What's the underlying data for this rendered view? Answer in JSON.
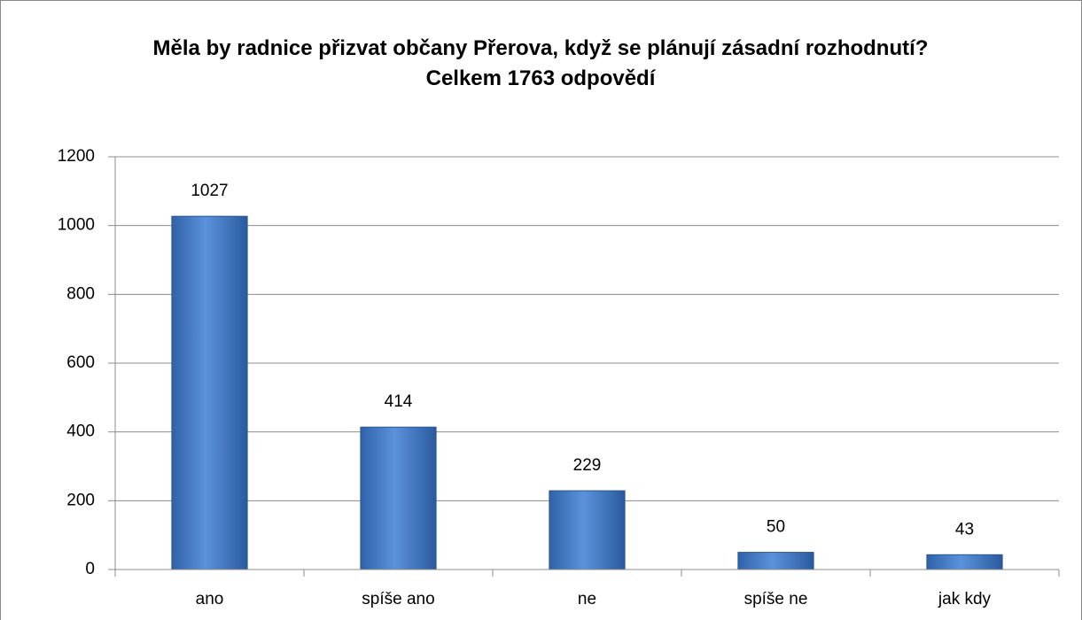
{
  "chart_data": {
    "type": "bar",
    "title": "Měla by radnice přizvat občany Přerova, když se plánují zásadní rozhodnutí? Celkem 1763 odpovědí",
    "categories": [
      "ano",
      "spíše ano",
      "ne",
      "spíše ne",
      "jak kdy"
    ],
    "values": [
      1027,
      414,
      229,
      50,
      43
    ],
    "color": "#4a7fc8",
    "ylim": [
      0,
      1200
    ],
    "yticks": [
      0,
      200,
      400,
      600,
      800,
      1000,
      1200
    ],
    "grid": true
  }
}
